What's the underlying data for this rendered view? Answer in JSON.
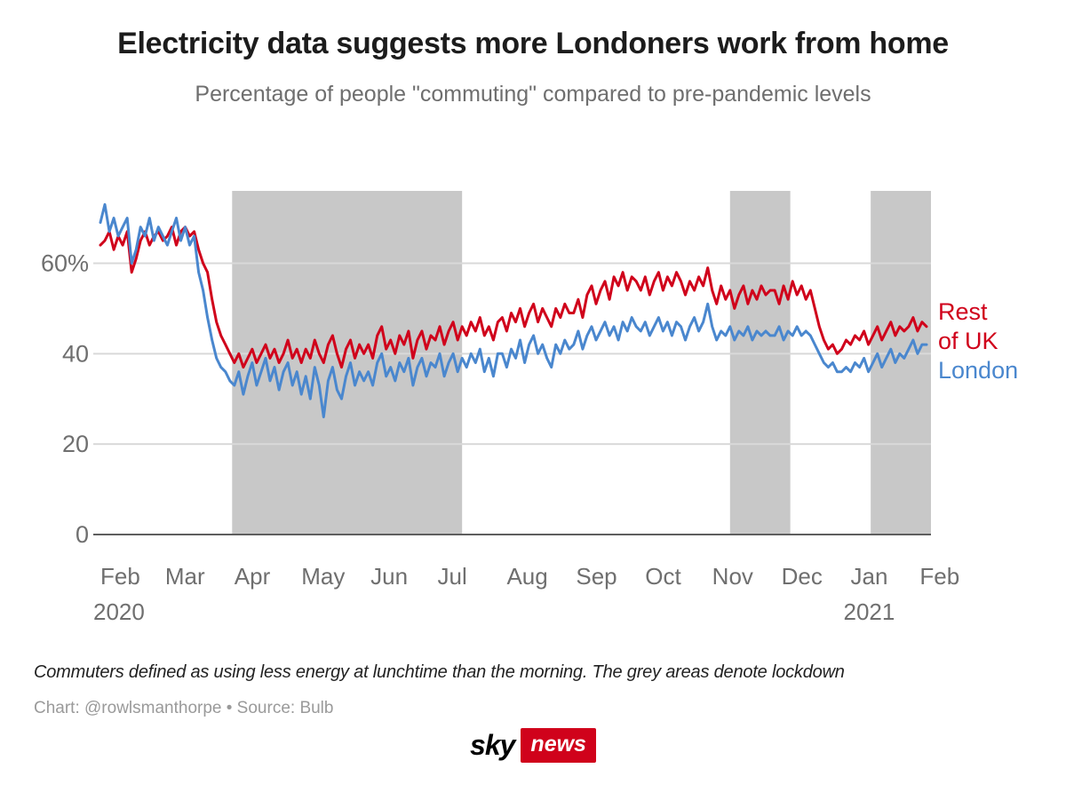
{
  "branding": {
    "sky": "sky",
    "news": "news",
    "box_color": "#d0021b"
  },
  "chart_data": {
    "type": "line",
    "title": "Electricity data suggests more Londoners work from home",
    "subtitle": "Percentage of people \"commuting\" compared to pre-pandemic levels",
    "note": "Commuters defined as using less energy at lunchtime than the morning. The grey areas denote lockdown",
    "credit": "Chart: @rowlsmanthorpe • Source: Bulb",
    "x_unit": "days since 1 Feb 2020",
    "x_step": 2,
    "xlim": [
      0,
      372
    ],
    "ylim": [
      0,
      76
    ],
    "grid": "horizontal-only",
    "legend_position": "right",
    "band_color": "#c8c8c8",
    "grid_color": "#d9d9d9",
    "axis_color": "#5e5e5e",
    "tick_color": "#6f6f6f",
    "y_ticks": [
      {
        "v": 0,
        "label": "0"
      },
      {
        "v": 20,
        "label": "20"
      },
      {
        "v": 40,
        "label": "40"
      },
      {
        "v": 60,
        "label": "60%"
      }
    ],
    "x_ticks": [
      {
        "day": 0,
        "label": "Feb"
      },
      {
        "day": 29,
        "label": "Mar"
      },
      {
        "day": 60,
        "label": "Apr"
      },
      {
        "day": 90,
        "label": "May"
      },
      {
        "day": 121,
        "label": "Jun"
      },
      {
        "day": 151,
        "label": "Jul"
      },
      {
        "day": 182,
        "label": "Aug"
      },
      {
        "day": 213,
        "label": "Sep"
      },
      {
        "day": 244,
        "label": "Oct"
      },
      {
        "day": 274,
        "label": "Nov"
      },
      {
        "day": 305,
        "label": "Dec"
      },
      {
        "day": 336,
        "label": "Jan"
      },
      {
        "day": 367,
        "label": "Feb"
      }
    ],
    "year_ticks": [
      {
        "day": 0,
        "label": "2020"
      },
      {
        "day": 336,
        "label": "2021"
      }
    ],
    "lockdown_bands": [
      [
        59,
        162
      ],
      [
        282,
        309
      ],
      [
        345,
        372
      ]
    ],
    "series": [
      {
        "name": "Rest of UK",
        "color": "#d0021b",
        "legend_lines": [
          "Rest",
          "of UK"
        ],
        "values": [
          64,
          65,
          67,
          63,
          66,
          64,
          67,
          58,
          61,
          65,
          67,
          64,
          66,
          67,
          65,
          66,
          68,
          64,
          67,
          68,
          66,
          67,
          63,
          60,
          58,
          52,
          47,
          44,
          42,
          40,
          38,
          40,
          37,
          39,
          41,
          38,
          40,
          42,
          39,
          41,
          38,
          40,
          43,
          39,
          41,
          38,
          41,
          39,
          43,
          40,
          38,
          42,
          44,
          40,
          37,
          41,
          43,
          39,
          42,
          40,
          42,
          39,
          44,
          46,
          41,
          43,
          40,
          44,
          42,
          45,
          39,
          43,
          45,
          41,
          44,
          43,
          46,
          42,
          45,
          47,
          43,
          46,
          44,
          47,
          45,
          48,
          44,
          46,
          43,
          47,
          48,
          45,
          49,
          47,
          50,
          46,
          49,
          51,
          47,
          50,
          48,
          46,
          50,
          48,
          51,
          49,
          49,
          52,
          48,
          53,
          55,
          51,
          54,
          56,
          52,
          57,
          55,
          58,
          54,
          57,
          56,
          54,
          57,
          53,
          56,
          58,
          54,
          57,
          55,
          58,
          56,
          53,
          56,
          54,
          57,
          55,
          59,
          54,
          51,
          55,
          52,
          54,
          50,
          53,
          55,
          51,
          54,
          52,
          55,
          53,
          54,
          54,
          51,
          55,
          52,
          56,
          53,
          55,
          52,
          54,
          50,
          46,
          43,
          41,
          42,
          40,
          41,
          43,
          42,
          44,
          43,
          45,
          42,
          44,
          46,
          43,
          45,
          47,
          44,
          46,
          45,
          46,
          48,
          45,
          47,
          46
        ]
      },
      {
        "name": "London",
        "color": "#4a87ce",
        "legend_lines": [
          "London"
        ],
        "values": [
          69,
          73,
          67,
          70,
          66,
          68,
          70,
          60,
          63,
          68,
          66,
          70,
          65,
          68,
          66,
          64,
          67,
          70,
          65,
          68,
          64,
          66,
          58,
          54,
          48,
          43,
          39,
          37,
          36,
          34,
          33,
          36,
          31,
          35,
          38,
          33,
          36,
          39,
          34,
          37,
          32,
          36,
          38,
          33,
          36,
          31,
          35,
          30,
          37,
          33,
          26,
          34,
          37,
          32,
          30,
          35,
          38,
          33,
          36,
          34,
          36,
          33,
          38,
          40,
          35,
          37,
          34,
          38,
          36,
          39,
          33,
          37,
          39,
          35,
          38,
          37,
          40,
          35,
          38,
          40,
          36,
          39,
          37,
          40,
          38,
          41,
          36,
          39,
          35,
          40,
          40,
          37,
          41,
          39,
          43,
          38,
          42,
          44,
          40,
          42,
          39,
          37,
          42,
          40,
          43,
          41,
          42,
          45,
          41,
          44,
          46,
          43,
          45,
          47,
          44,
          46,
          43,
          47,
          45,
          48,
          46,
          45,
          47,
          44,
          46,
          48,
          45,
          47,
          44,
          47,
          46,
          43,
          46,
          48,
          45,
          47,
          51,
          46,
          43,
          45,
          44,
          46,
          43,
          45,
          44,
          46,
          43,
          45,
          44,
          45,
          44,
          44,
          46,
          43,
          45,
          44,
          46,
          44,
          45,
          44,
          42,
          40,
          38,
          37,
          38,
          36,
          36,
          37,
          36,
          38,
          37,
          39,
          36,
          38,
          40,
          37,
          39,
          41,
          38,
          40,
          39,
          41,
          43,
          40,
          42,
          42
        ]
      }
    ]
  }
}
